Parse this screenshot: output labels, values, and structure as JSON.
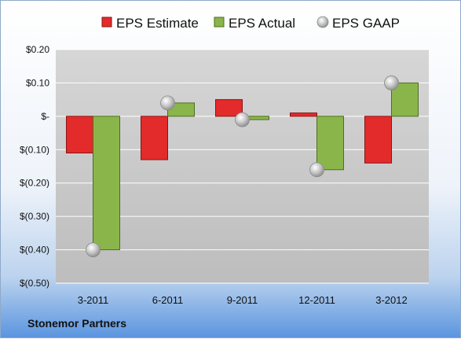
{
  "company_label": "Stonemor Partners",
  "colors": {
    "estimate_fill": "#e32b2b",
    "estimate_stroke": "#8c1212",
    "actual_fill": "#8ab54a",
    "actual_stroke": "#4d6e1f",
    "gaap_fill": "#c2c2c2",
    "plot_bg": "#c8c8c8",
    "grid": "#ffffff"
  },
  "chart_data": {
    "type": "bar",
    "categories": [
      "3-2011",
      "6-2011",
      "9-2011",
      "12-2011",
      "3-2012"
    ],
    "series": [
      {
        "name": "EPS Estimate",
        "kind": "bar",
        "values": [
          -0.11,
          -0.13,
          0.05,
          0.01,
          -0.14
        ]
      },
      {
        "name": "EPS Actual",
        "kind": "bar",
        "values": [
          -0.4,
          0.04,
          -0.01,
          -0.16,
          0.1
        ]
      },
      {
        "name": "EPS GAAP",
        "kind": "marker",
        "values": [
          -0.4,
          0.04,
          -0.01,
          -0.16,
          0.1
        ]
      }
    ],
    "ylim": [
      -0.5,
      0.2
    ],
    "yticks": [
      0.2,
      0.1,
      0.0,
      -0.1,
      -0.2,
      -0.3,
      -0.4,
      -0.5
    ],
    "ytick_labels": [
      "$0.20",
      "$0.10",
      "$-",
      "$(0.10)",
      "$(0.20)",
      "$(0.30)",
      "$(0.40)",
      "$(0.50)"
    ],
    "legend_position": "top",
    "grid": true
  }
}
